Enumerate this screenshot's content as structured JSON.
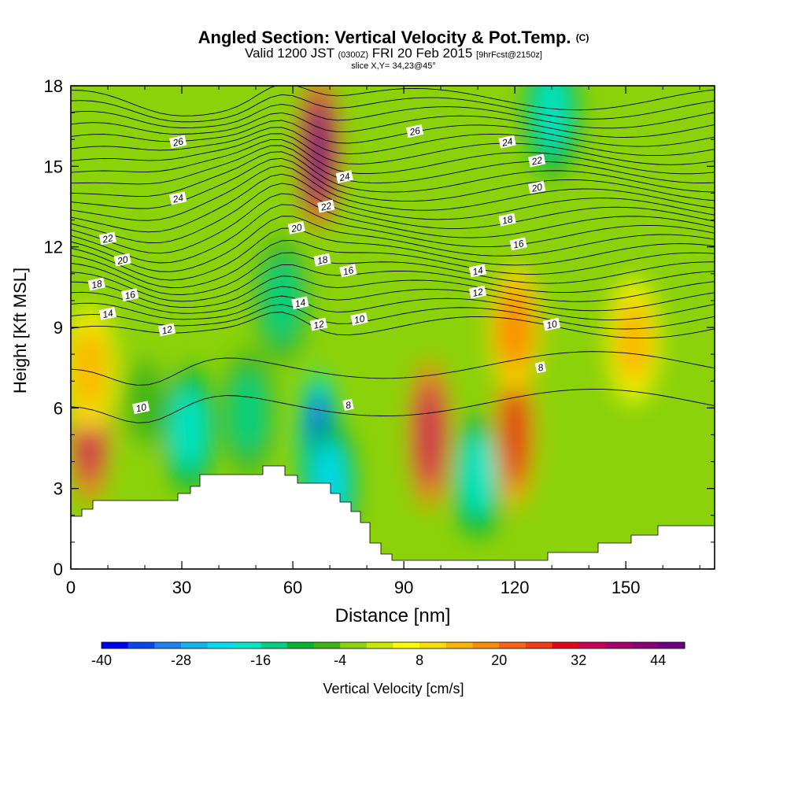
{
  "title": {
    "main": "Angled Section: Vertical Velocity & Pot.Temp.",
    "copyright": "(C)",
    "valid_prefix": "Valid 1200 JST",
    "utc": "(0300Z)",
    "date": "FRI 20 Feb 2015",
    "forecast": "[9hrFcst@2150z]",
    "slice": "slice X,Y= 34,23@45°"
  },
  "chart_data": {
    "type": "heatmap",
    "xlabel": "Distance [nm]",
    "ylabel": "Height [Kft MSL]",
    "xlim": [
      0,
      174
    ],
    "ylim": [
      0,
      18
    ],
    "x_ticks": [
      0,
      30,
      60,
      90,
      120,
      150
    ],
    "y_ticks": [
      0,
      3,
      6,
      9,
      12,
      15,
      18
    ],
    "colorbar": {
      "label": "Vertical Velocity [cm/s]",
      "min": -40,
      "max": 48,
      "step": 4,
      "tick_values": [
        -40,
        -28,
        -16,
        -4,
        8,
        20,
        32,
        44
      ],
      "colors": [
        "#0000f0",
        "#0a46f0",
        "#1e82f0",
        "#14b4f0",
        "#00dcf0",
        "#00e6c8",
        "#00d282",
        "#00b432",
        "#3cb414",
        "#8cd20a",
        "#c8e600",
        "#fafa00",
        "#fadc00",
        "#fab400",
        "#fa8c00",
        "#fa6414",
        "#f03c14",
        "#dc0a14",
        "#c8005a",
        "#aa006e",
        "#8c0078",
        "#6e0082"
      ]
    },
    "vertical_velocity_cells": [
      {
        "x": 5,
        "y": 5.2,
        "value": 32
      },
      {
        "x": 5,
        "y": 7.5,
        "value": 14
      },
      {
        "x": 20,
        "y": 6.2,
        "value": -8
      },
      {
        "x": 32,
        "y": 5.2,
        "value": -20
      },
      {
        "x": 48,
        "y": 5.8,
        "value": -16
      },
      {
        "x": 57,
        "y": 10.0,
        "value": -16
      },
      {
        "x": 67,
        "y": 4.6,
        "value": -36
      },
      {
        "x": 67,
        "y": 15.5,
        "value": 44
      },
      {
        "x": 70,
        "y": 3.2,
        "value": -24
      },
      {
        "x": 97,
        "y": 5.0,
        "value": 34
      },
      {
        "x": 110,
        "y": 3.5,
        "value": -20
      },
      {
        "x": 120,
        "y": 5.0,
        "value": 30
      },
      {
        "x": 120,
        "y": 9.0,
        "value": 18
      },
      {
        "x": 130,
        "y": 17.0,
        "value": -20
      },
      {
        "x": 152,
        "y": 8.5,
        "value": 12
      }
    ],
    "potential_temperature_labels": [
      {
        "x": 29,
        "y": 15.9,
        "text": "26"
      },
      {
        "x": 29,
        "y": 13.8,
        "text": "24"
      },
      {
        "x": 10,
        "y": 12.3,
        "text": "22"
      },
      {
        "x": 14,
        "y": 11.5,
        "text": "20"
      },
      {
        "x": 7,
        "y": 10.6,
        "text": "18"
      },
      {
        "x": 16,
        "y": 10.2,
        "text": "16"
      },
      {
        "x": 10,
        "y": 9.5,
        "text": "14"
      },
      {
        "x": 26,
        "y": 8.9,
        "text": "12"
      },
      {
        "x": 19,
        "y": 6.0,
        "text": "10"
      },
      {
        "x": 93,
        "y": 16.3,
        "text": "26"
      },
      {
        "x": 118,
        "y": 15.9,
        "text": "24"
      },
      {
        "x": 126,
        "y": 15.2,
        "text": "22"
      },
      {
        "x": 126,
        "y": 14.2,
        "text": "20"
      },
      {
        "x": 118,
        "y": 13.0,
        "text": "18"
      },
      {
        "x": 121,
        "y": 12.1,
        "text": "16"
      },
      {
        "x": 110,
        "y": 11.1,
        "text": "14"
      },
      {
        "x": 110,
        "y": 10.3,
        "text": "12"
      },
      {
        "x": 130,
        "y": 9.1,
        "text": "10"
      },
      {
        "x": 127,
        "y": 7.5,
        "text": "8"
      },
      {
        "x": 74,
        "y": 14.6,
        "text": "24"
      },
      {
        "x": 69,
        "y": 13.5,
        "text": "22"
      },
      {
        "x": 61,
        "y": 12.7,
        "text": "20"
      },
      {
        "x": 68,
        "y": 11.5,
        "text": "18"
      },
      {
        "x": 75,
        "y": 11.1,
        "text": "16"
      },
      {
        "x": 62,
        "y": 9.9,
        "text": "14"
      },
      {
        "x": 67,
        "y": 9.1,
        "text": "12"
      },
      {
        "x": 78,
        "y": 9.3,
        "text": "10"
      },
      {
        "x": 75,
        "y": 6.1,
        "text": "8"
      }
    ]
  }
}
